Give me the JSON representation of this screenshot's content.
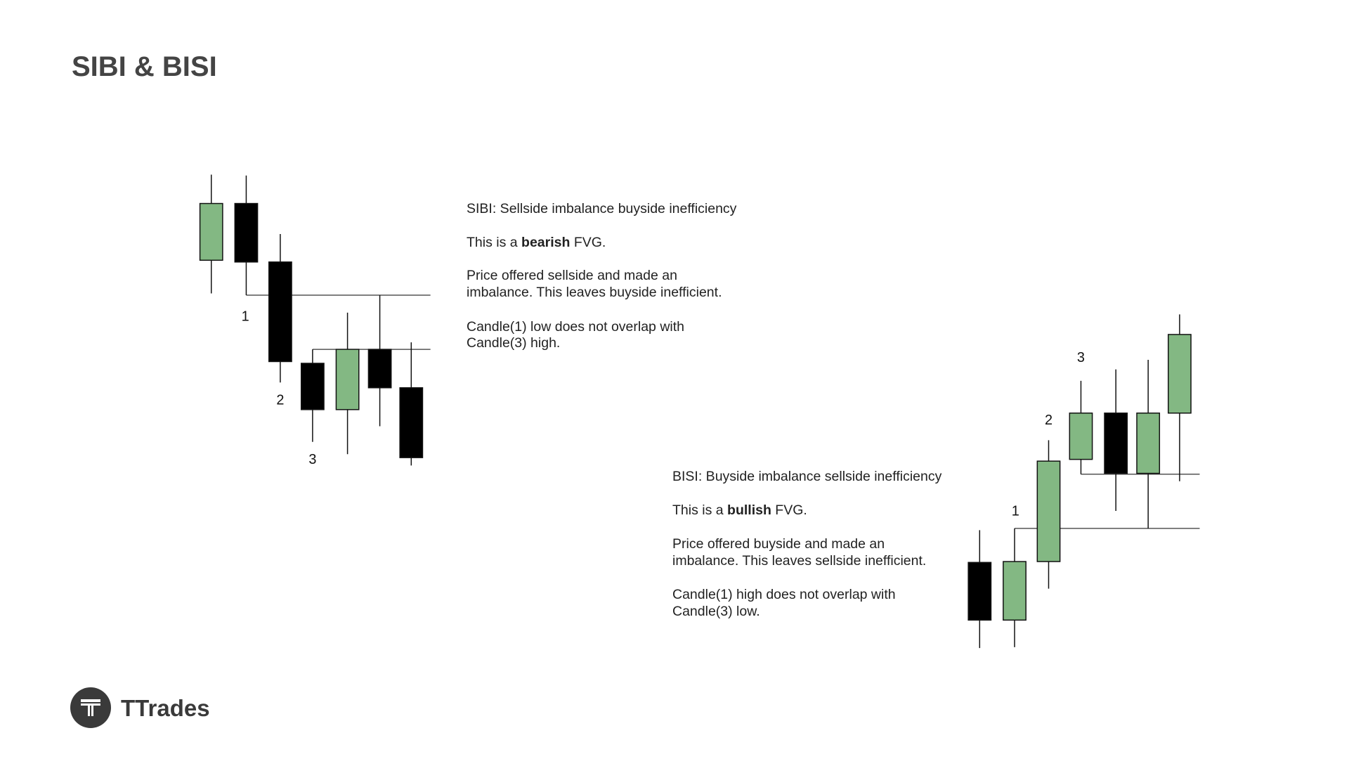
{
  "title": "SIBI & BISI",
  "brand": "TTrades",
  "sibi": {
    "candle_labels": [
      "1",
      "2",
      "3"
    ],
    "heading": "SIBI: Sellside imbalance buyside inefficiency",
    "kind": [
      "This is a ",
      "bearish",
      " FVG."
    ],
    "explanation": [
      "Price offered sellside and made an",
      "imbalance. This leaves buyside inefficient."
    ],
    "rule": [
      "Candle(1) low does not overlap with",
      "Candle(3) high."
    ]
  },
  "bisi": {
    "candle_labels": [
      "1",
      "2",
      "3"
    ],
    "heading": "BISI: Buyside imbalance sellside inefficiency",
    "kind": [
      "This is a ",
      "bullish",
      " FVG."
    ],
    "explanation": [
      "Price offered buyside and made an",
      "imbalance. This leaves sellside inefficient."
    ],
    "rule": [
      "Candle(1) high does not overlap with",
      "Candle(3) low."
    ]
  }
}
